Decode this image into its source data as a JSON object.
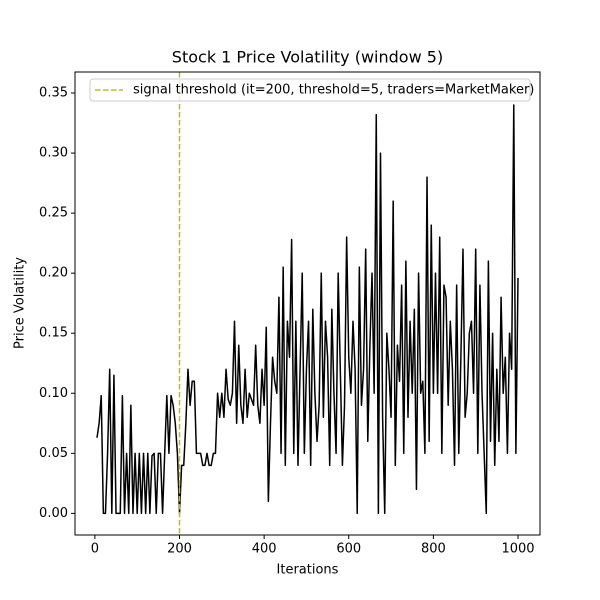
{
  "chart_data": {
    "type": "line",
    "title": "Stock 1 Price Volatility (window 5)",
    "xlabel": "Iterations",
    "ylabel": "Price Volatility",
    "xlim": [
      -47,
      1052
    ],
    "ylim": [
      -0.018,
      0.3675
    ],
    "xticks": [
      0,
      200,
      400,
      600,
      800,
      1000
    ],
    "yticks": [
      {
        "value": 0,
        "label": "0.00"
      },
      0.05,
      {
        "value": 0.1,
        "label": "0.10"
      },
      0.15,
      {
        "value": 0.2,
        "label": "0.20"
      },
      0.25,
      {
        "value": 0.3,
        "label": "0.30"
      },
      0.35
    ],
    "x": [
      5,
      10,
      15,
      20,
      25,
      30,
      35,
      40,
      45,
      50,
      55,
      60,
      65,
      70,
      75,
      80,
      85,
      90,
      95,
      100,
      105,
      110,
      115,
      120,
      125,
      130,
      135,
      140,
      145,
      150,
      155,
      160,
      165,
      170,
      175,
      180,
      185,
      190,
      195,
      200,
      205,
      210,
      215,
      220,
      225,
      230,
      235,
      240,
      245,
      250,
      255,
      260,
      265,
      270,
      275,
      280,
      285,
      290,
      295,
      300,
      305,
      310,
      315,
      320,
      325,
      330,
      335,
      340,
      345,
      350,
      355,
      360,
      365,
      370,
      375,
      380,
      385,
      390,
      395,
      400,
      405,
      410,
      415,
      420,
      425,
      430,
      435,
      440,
      445,
      450,
      455,
      460,
      465,
      470,
      475,
      480,
      485,
      490,
      495,
      500,
      505,
      510,
      515,
      520,
      525,
      530,
      535,
      540,
      545,
      550,
      555,
      560,
      565,
      570,
      575,
      580,
      585,
      590,
      595,
      600,
      605,
      610,
      615,
      620,
      625,
      630,
      635,
      640,
      645,
      650,
      655,
      660,
      665,
      670,
      675,
      680,
      685,
      690,
      695,
      700,
      705,
      710,
      715,
      720,
      725,
      730,
      735,
      740,
      745,
      750,
      755,
      760,
      765,
      770,
      775,
      780,
      785,
      790,
      795,
      800,
      805,
      810,
      815,
      820,
      825,
      830,
      835,
      840,
      845,
      850,
      855,
      860,
      865,
      870,
      875,
      880,
      885,
      890,
      895,
      900,
      905,
      910,
      915,
      920,
      925,
      930,
      935,
      940,
      945,
      950,
      955,
      960,
      965,
      970,
      975,
      980,
      985,
      990,
      995,
      1000
    ],
    "series": [
      {
        "name": "Stock 1",
        "color": "#000000",
        "values": [
          0.063,
          0.075,
          0.098,
          0,
          0,
          0.05,
          0.12,
          0,
          0.115,
          0,
          0,
          0,
          0.098,
          0,
          0.05,
          0,
          0.09,
          0,
          0.05,
          0,
          0.05,
          0,
          0.05,
          0,
          0.05,
          0,
          0.048,
          0.05,
          0,
          0.05,
          0.05,
          0,
          0.05,
          0.098,
          0.05,
          0.098,
          0.09,
          0.075,
          0.05,
          0,
          0.04,
          0.04,
          0.075,
          0.12,
          0.09,
          0.11,
          0.11,
          0.05,
          0.05,
          0.05,
          0.04,
          0.04,
          0.05,
          0.04,
          0.04,
          0.05,
          0.05,
          0.1,
          0.08,
          0.1,
          0.08,
          0.12,
          0.095,
          0.09,
          0.1,
          0.16,
          0.075,
          0.14,
          0.09,
          0.075,
          0.12,
          0.08,
          0.1,
          0.095,
          0.09,
          0.14,
          0.09,
          0.075,
          0.12,
          0.09,
          0.155,
          0.01,
          0.075,
          0.13,
          0.11,
          0.1,
          0.18,
          0.05,
          0.205,
          0.04,
          0.16,
          0.13,
          0.228,
          0.05,
          0.16,
          0.04,
          0.12,
          0.2,
          0.05,
          0.12,
          0.16,
          0.04,
          0.17,
          0.1,
          0.06,
          0.09,
          0.2,
          0.08,
          0.16,
          0.13,
          0.04,
          0.17,
          0.1,
          0.05,
          0.2,
          0.12,
          0.04,
          0.09,
          0.23,
          0.13,
          0.1,
          0.16,
          0.12,
          0,
          0.205,
          0.09,
          0.12,
          0.22,
          0.06,
          0.14,
          0.2,
          0.1,
          0.332,
          0,
          0.3,
          0.08,
          0,
          0.15,
          0.12,
          0.08,
          0.26,
          0.04,
          0.14,
          0.11,
          0.19,
          0.05,
          0.21,
          0.08,
          0.16,
          0.1,
          0.17,
          0.02,
          0.2,
          0.1,
          0.11,
          0.05,
          0.28,
          0.06,
          0.24,
          0.1,
          0.2,
          0.1,
          0.23,
          0.05,
          0.19,
          0.18,
          0.09,
          0.16,
          0.12,
          0.04,
          0.19,
          0.05,
          0.13,
          0.22,
          0.08,
          0.1,
          0.15,
          0.16,
          0.1,
          0.22,
          0.05,
          0.19,
          0.1,
          0.05,
          0,
          0.21,
          0.06,
          0.15,
          0.04,
          0.12,
          0.06,
          0.18,
          0.1,
          0.13,
          0.05,
          0.15,
          0.12,
          0.34,
          0.05,
          0.196
        ]
      }
    ],
    "vline": {
      "x": 200,
      "color": "#bcbd22",
      "label": "signal threshold (it=200, threshold=5, traders=MarketMaker)"
    },
    "legend": "upper right"
  }
}
